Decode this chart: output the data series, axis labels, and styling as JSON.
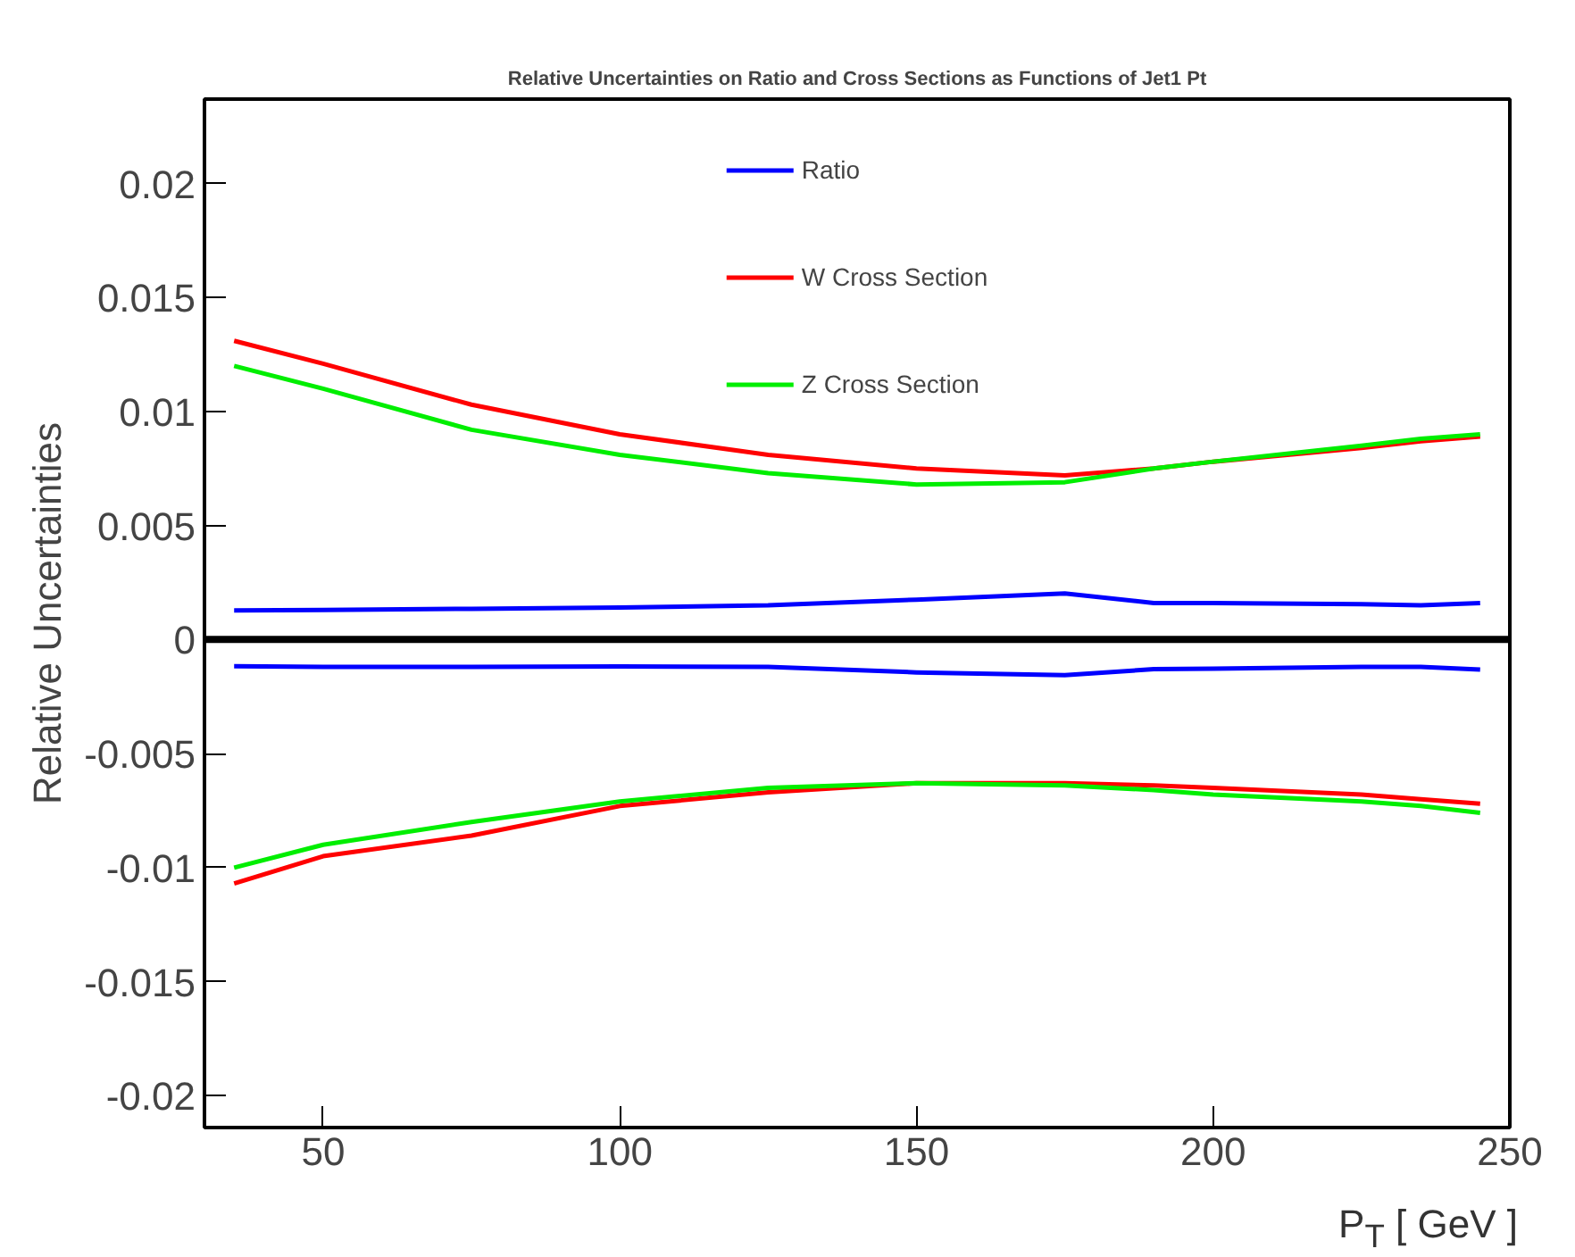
{
  "chart_data": {
    "type": "line",
    "title": "Relative Uncertainties on Ratio and Cross Sections as Functions of Jet1 Pt",
    "xlabel": "P$_{T}$ [ GeV ]",
    "ylabel": "Relative Uncertainties",
    "x": [
      35,
      50,
      75,
      100,
      125,
      150,
      175,
      190,
      200,
      225,
      235,
      245
    ],
    "series": [
      {
        "name": "Ratio",
        "color": "#0000ff",
        "values": [
          0.00128,
          0.0013,
          0.00135,
          0.0014,
          0.0015,
          0.00175,
          0.00202,
          0.0016,
          0.0016,
          0.00155,
          0.0015,
          0.0016
        ]
      },
      {
        "name": "W Cross Section",
        "color": "#ff0000",
        "values": [
          0.0131,
          0.0121,
          0.0103,
          0.009,
          0.0081,
          0.0075,
          0.0072,
          0.0075,
          0.0078,
          0.0084,
          0.0087,
          0.0089
        ]
      },
      {
        "name": "Z Cross Section",
        "color": "#00ee00",
        "values": [
          0.012,
          0.011,
          0.0092,
          0.0081,
          0.0073,
          0.0068,
          0.0069,
          0.0075,
          0.0078,
          0.0085,
          0.0088,
          0.009
        ]
      },
      {
        "color": "#0000ff",
        "values": [
          -0.00117,
          -0.0012,
          -0.0012,
          -0.00118,
          -0.0012,
          -0.00144,
          -0.00156,
          -0.0013,
          -0.00128,
          -0.0012,
          -0.0012,
          -0.00132
        ]
      },
      {
        "color": "#ff0000",
        "values": [
          -0.0107,
          -0.0095,
          -0.0086,
          -0.0073,
          -0.0067,
          -0.0063,
          -0.0063,
          -0.0064,
          -0.0065,
          -0.0068,
          -0.007,
          -0.0072
        ]
      },
      {
        "color": "#00ee00",
        "values": [
          -0.01,
          -0.009,
          -0.008,
          -0.0071,
          -0.0065,
          -0.0063,
          -0.0064,
          -0.0066,
          -0.0068,
          -0.0071,
          -0.0073,
          -0.0076
        ]
      }
    ],
    "ref_lines": [
      {
        "axis": "y",
        "value": 0,
        "color": "#000000"
      }
    ],
    "xlim": [
      30,
      250
    ],
    "xticks": [
      50,
      100,
      150,
      200,
      250
    ],
    "ylim": [
      -0.0214,
      0.0237
    ],
    "yticks": [
      -0.02,
      -0.015,
      -0.01,
      -0.005,
      0,
      0.005,
      0.01,
      0.015,
      0.02
    ],
    "grid": false,
    "legend": "top",
    "marker": "none",
    "line_style": "solid"
  }
}
